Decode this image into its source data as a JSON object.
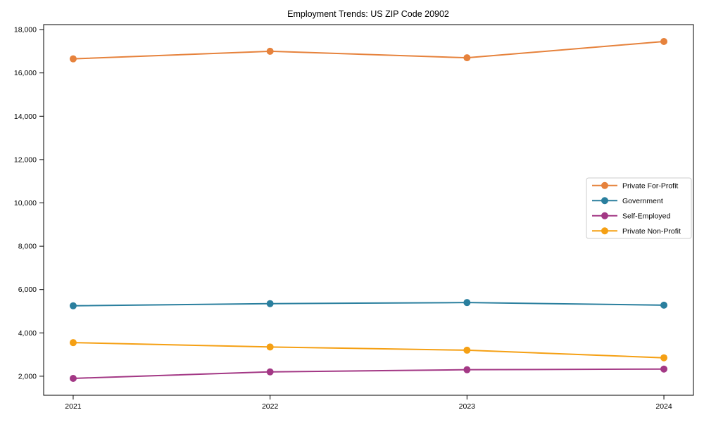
{
  "chart_data": {
    "type": "line",
    "title": "Employment Trends: US ZIP Code 20902",
    "xlabel": "",
    "ylabel": "",
    "categories": [
      2021,
      2022,
      2023,
      2024
    ],
    "series": [
      {
        "name": "Private For-Profit",
        "color": "#e6823c",
        "values": [
          16650,
          17000,
          16700,
          17450
        ]
      },
      {
        "name": "Government",
        "color": "#2a7f9e",
        "values": [
          5250,
          5350,
          5400,
          5280
        ]
      },
      {
        "name": "Self-Employed",
        "color": "#a33885",
        "values": [
          1900,
          2200,
          2300,
          2330
        ]
      },
      {
        "name": "Private Non-Profit",
        "color": "#f5a014",
        "values": [
          3550,
          3350,
          3200,
          2850
        ]
      }
    ],
    "xlim": [
      2020.85,
      2024.15
    ],
    "ylim": [
      1120,
      18230
    ],
    "yticks": [
      2000,
      4000,
      6000,
      8000,
      10000,
      12000,
      14000,
      16000,
      18000
    ],
    "xticks": [
      "2021",
      "2022",
      "2023",
      "2024"
    ],
    "grid": false,
    "legend_position": "right-middle",
    "axis_color": "#000000",
    "legend_border_color": "#cccccc",
    "background_color": "#ffffff"
  }
}
